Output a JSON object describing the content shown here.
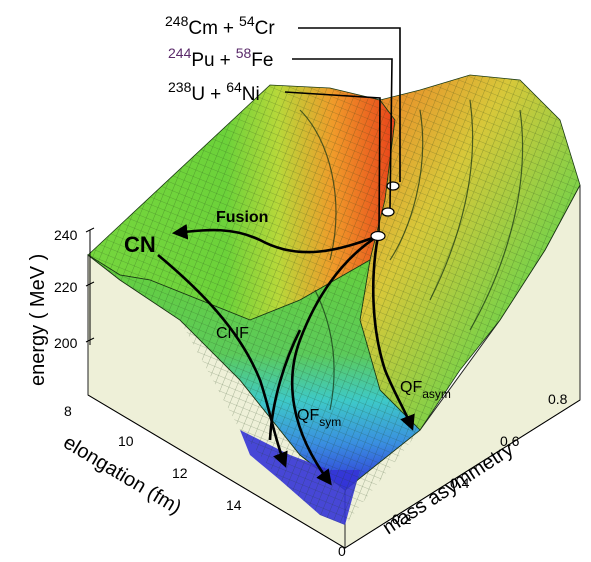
{
  "reactions": [
    {
      "a_mass": "248",
      "a_sym": "Cm",
      "plus": "+",
      "b_mass": "54",
      "b_sym": "Cr"
    },
    {
      "a_mass": "244",
      "a_sym": "Pu",
      "plus": "+",
      "b_mass": "58",
      "b_sym": "Fe"
    },
    {
      "a_mass": "238",
      "a_sym": "U",
      "plus": "+",
      "b_mass": "64",
      "b_sym": "Ni"
    }
  ],
  "labels": {
    "cn": "CN",
    "fusion": "Fusion",
    "cnf": "CNF",
    "qf_sym": "QF",
    "qf_sym_sub": "sym",
    "qf_asym": "QF",
    "qf_asym_sub": "asym"
  },
  "axes": {
    "energy": {
      "title": "energy ( MeV )",
      "ticks": [
        "240",
        "220",
        "200"
      ]
    },
    "elongation": {
      "title": "elongation (fm)",
      "ticks": [
        "8",
        "10",
        "12",
        "14"
      ]
    },
    "mass_asymmetry": {
      "title": "mass asymmetry",
      "ticks": [
        "0",
        "0.2",
        "0.4",
        "0.6",
        "0.8"
      ]
    }
  },
  "colors": {
    "surface_low": "#2a2ad8",
    "surface_mid": "#39c5d0",
    "surface_green": "#6ed43a",
    "surface_high": "#e8541c",
    "side_wall": "#eef0d8",
    "mesh": "#1b3a14",
    "ink": "#000000"
  }
}
